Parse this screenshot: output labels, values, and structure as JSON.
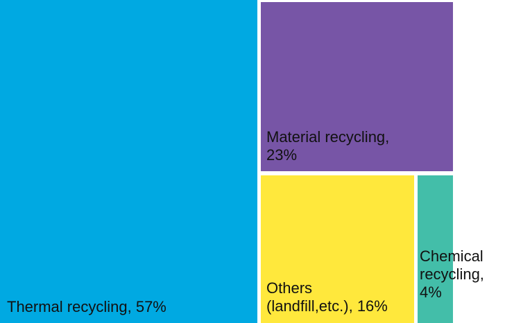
{
  "chart_data": {
    "type": "treemap",
    "title": "",
    "items": [
      {
        "name": "Thermal recycling",
        "value": 57,
        "label_lines": [
          "Thermal recycling, 57%"
        ],
        "color": "#00a9e2"
      },
      {
        "name": "Material recycling",
        "value": 23,
        "label_lines": [
          "Material recycling,",
          "23%"
        ],
        "color": "#7755a6"
      },
      {
        "name": "Others (landfill,etc.)",
        "value": 16,
        "label_lines": [
          "Others",
          "(landfill,etc.), 16%"
        ],
        "color": "#ffe83c"
      },
      {
        "name": "Chemical recycling",
        "value": 4,
        "label_lines": [
          "Chemical",
          "recycling,",
          "4%"
        ],
        "color": "#43bea9"
      }
    ]
  }
}
